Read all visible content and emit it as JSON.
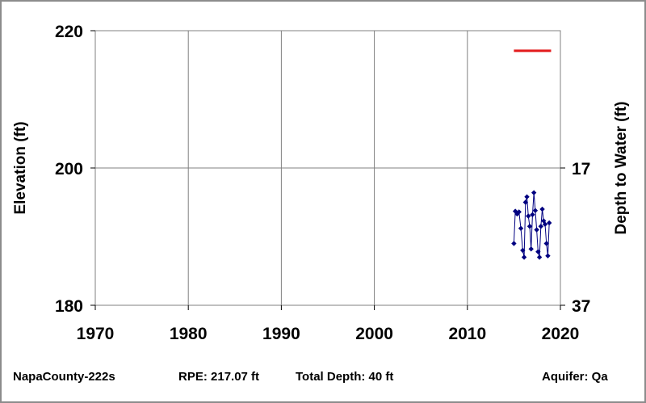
{
  "chart_data": {
    "type": "line",
    "x_axis": {
      "ticks": [
        1970,
        1980,
        1990,
        2000,
        2010,
        2020
      ],
      "range": [
        1970,
        2020
      ],
      "grid": true
    },
    "y_axis_left": {
      "label": "Elevation (ft)",
      "ticks": [
        180,
        200,
        220
      ],
      "range": [
        180,
        220
      ]
    },
    "y_axis_right": {
      "label": "Depth to Water (ft)",
      "ticks": [
        17,
        37
      ],
      "range_note": "depth increases downward"
    },
    "series": [
      {
        "kind": "measurements",
        "color": "#000080",
        "marker": "diamond",
        "points": [
          [
            2015.0,
            189.0
          ],
          [
            2015.15,
            193.7
          ],
          [
            2015.35,
            193.3
          ],
          [
            2015.55,
            193.6
          ],
          [
            2015.75,
            191.2
          ],
          [
            2015.95,
            188.0
          ],
          [
            2016.1,
            187.0
          ],
          [
            2016.25,
            195.0
          ],
          [
            2016.4,
            195.8
          ],
          [
            2016.55,
            193.0
          ],
          [
            2016.7,
            191.5
          ],
          [
            2016.85,
            188.2
          ],
          [
            2017.0,
            193.2
          ],
          [
            2017.15,
            196.4
          ],
          [
            2017.3,
            193.8
          ],
          [
            2017.45,
            191.0
          ],
          [
            2017.6,
            187.8
          ],
          [
            2017.75,
            187.0
          ],
          [
            2017.9,
            191.5
          ],
          [
            2018.05,
            194.0
          ],
          [
            2018.2,
            192.3
          ],
          [
            2018.35,
            191.8
          ],
          [
            2018.5,
            189.0
          ],
          [
            2018.65,
            187.2
          ],
          [
            2018.8,
            192.0
          ]
        ]
      },
      {
        "kind": "reference",
        "color": "#e31a1c",
        "segment": {
          "x": [
            2015.0,
            2019.0
          ],
          "y": 217.07
        }
      }
    ]
  },
  "footer": {
    "well_id": "NapaCounty-222s",
    "rpe": "RPE: 217.07 ft",
    "total_depth": "Total Depth: 40 ft",
    "aquifer": "Aquifer: Qa"
  }
}
